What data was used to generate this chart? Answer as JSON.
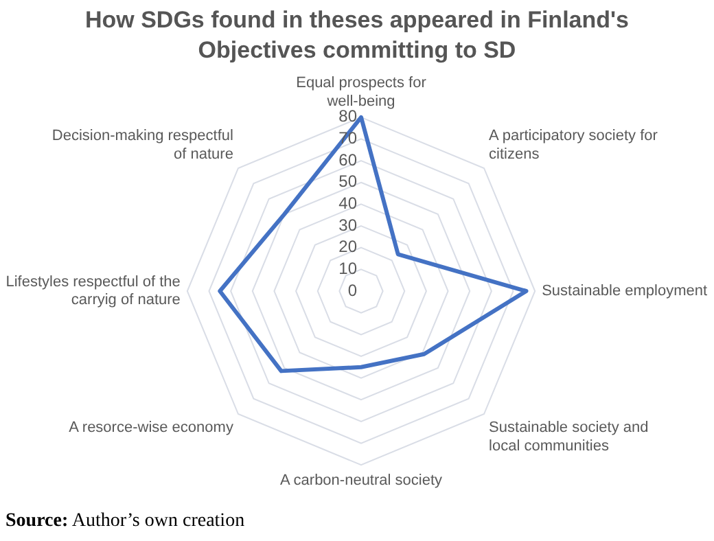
{
  "chart_data": {
    "type": "radar",
    "title": "How SDGs found in theses appeared in Finland's Objectives committing to SD",
    "categories": [
      "Equal prospects for well-being",
      "A participatory society for citizens",
      "Sustainable employment",
      "Sustainable society and local communities",
      "A carbon-neutral society",
      "A resorce-wise economy",
      "Lifestyles respectful of the carryig of nature",
      "Decision-making respectful of nature"
    ],
    "series": [
      {
        "color": "#4472c4",
        "values": [
          80,
          24,
          76,
          41,
          35,
          52,
          65,
          50
        ]
      }
    ],
    "ylim": [
      0,
      80
    ],
    "yticks": [
      0,
      10,
      20,
      30,
      40,
      50,
      60,
      70,
      80
    ],
    "grid": true,
    "legend": false,
    "marker": "none",
    "annotations": [
      "Source: Author’s own creation"
    ]
  }
}
